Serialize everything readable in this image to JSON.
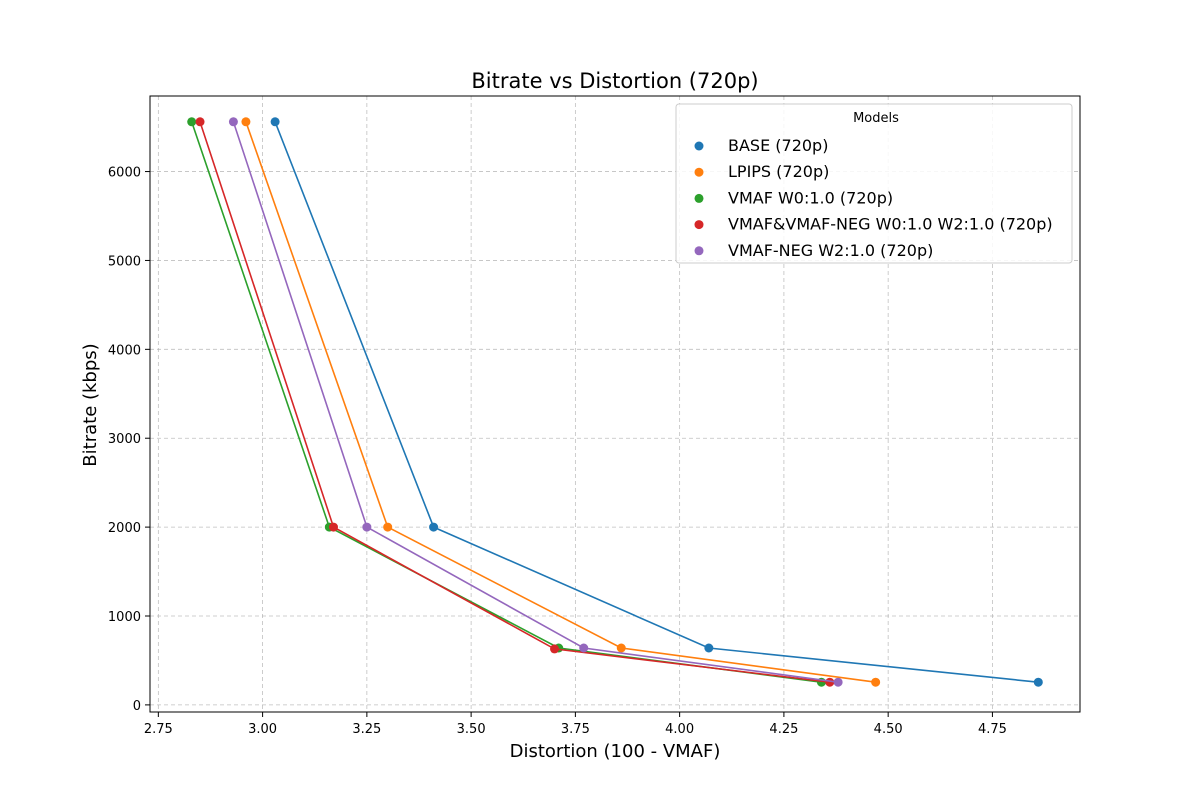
{
  "chart_data": {
    "type": "line",
    "title": "Bitrate vs Distortion (720p)",
    "xlabel": "Distortion (100 - VMAF)",
    "ylabel": "Bitrate (kbps)",
    "xlim": [
      2.73,
      4.96
    ],
    "ylim": [
      -80,
      6850
    ],
    "xticks": [
      2.75,
      3.0,
      3.25,
      3.5,
      3.75,
      4.0,
      4.25,
      4.5,
      4.75
    ],
    "xtick_labels": [
      "2.75",
      "3.00",
      "3.25",
      "3.50",
      "3.75",
      "4.00",
      "4.25",
      "4.50",
      "4.75"
    ],
    "yticks": [
      0,
      1000,
      2000,
      3000,
      4000,
      5000,
      6000
    ],
    "ytick_labels": [
      "0",
      "1000",
      "2000",
      "3000",
      "4000",
      "5000",
      "6000"
    ],
    "grid": true,
    "legend": {
      "title": "Models",
      "placement": "top-right"
    },
    "series": [
      {
        "name": "BASE (720p)",
        "color": "#1f77b4",
        "x": [
          3.03,
          3.41,
          4.07,
          4.86
        ],
        "y": [
          6560,
          2000,
          640,
          255
        ]
      },
      {
        "name": "LPIPS (720p)",
        "color": "#ff7f0e",
        "x": [
          2.96,
          3.3,
          3.86,
          4.47
        ],
        "y": [
          6560,
          2000,
          640,
          255
        ]
      },
      {
        "name": "VMAF W0:1.0 (720p)",
        "color": "#2ca02c",
        "x": [
          2.83,
          3.16,
          3.71,
          4.34
        ],
        "y": [
          6560,
          2000,
          640,
          255
        ]
      },
      {
        "name": "VMAF&VMAF-NEG W0:1.0 W2:1.0 (720p)",
        "color": "#d62728",
        "x": [
          2.85,
          3.17,
          3.7,
          4.36
        ],
        "y": [
          6560,
          2000,
          630,
          255
        ]
      },
      {
        "name": "VMAF-NEG W2:1.0 (720p)",
        "color": "#9467bd",
        "x": [
          2.93,
          3.25,
          3.77,
          4.38
        ],
        "y": [
          6560,
          2000,
          640,
          255
        ]
      }
    ]
  }
}
